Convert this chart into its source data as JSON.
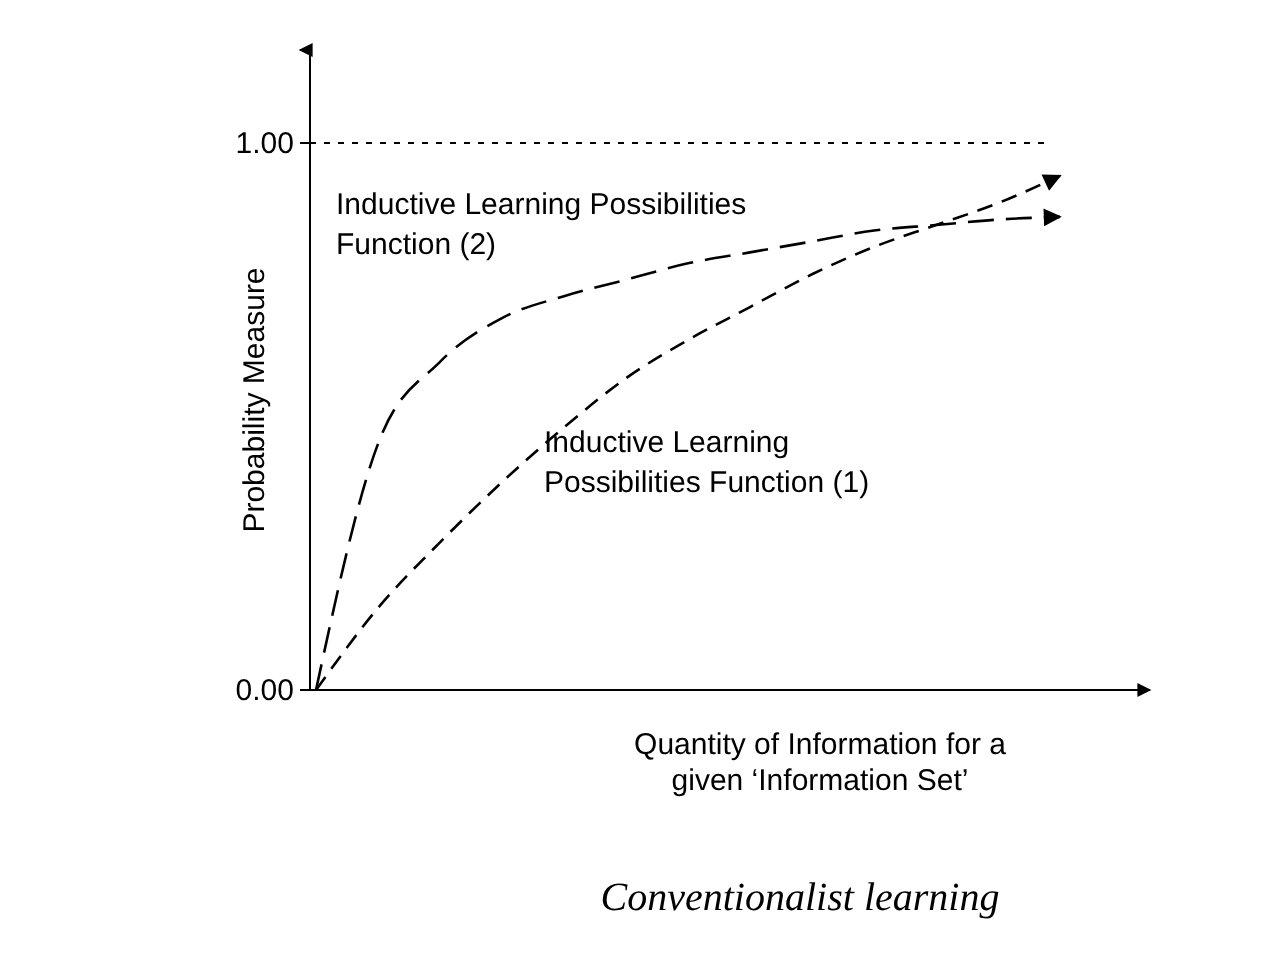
{
  "chart_data": {
    "type": "line",
    "title": "Conventionalist learning",
    "xlabel": "Quantity of Information for a given ‘Information Set’",
    "ylabel": "Probability Measure",
    "categories": [
      null,
      null,
      null,
      null,
      null,
      null,
      null,
      null,
      null,
      null,
      null,
      null,
      null
    ],
    "series": [
      {
        "name": "Inductive Learning Possibilities Function (2)",
        "color": "#000000",
        "values": [
          0,
          0.45,
          0.6,
          0.68,
          0.72,
          0.75,
          0.78,
          0.8,
          0.82,
          0.84,
          0.85,
          0.86,
          0.865
        ]
      },
      {
        "name": "Inductive Learning Possibilities Function (1)",
        "color": "#000000",
        "values": [
          0,
          0.15,
          0.27,
          0.38,
          0.48,
          0.57,
          0.64,
          0.7,
          0.76,
          0.81,
          0.85,
          0.89,
          0.94
        ]
      }
    ],
    "ylim": [
      0,
      1.17
    ],
    "yticks": [
      {
        "value": 0,
        "label": "0.00"
      },
      {
        "value": 1,
        "label": "1.00"
      }
    ],
    "tick_labels": "y",
    "line_style": "dashed",
    "marker": "none",
    "ref_lines": [
      {
        "axis": "y",
        "value": 1,
        "line_style": "dotted",
        "color": "#000000"
      }
    ]
  }
}
